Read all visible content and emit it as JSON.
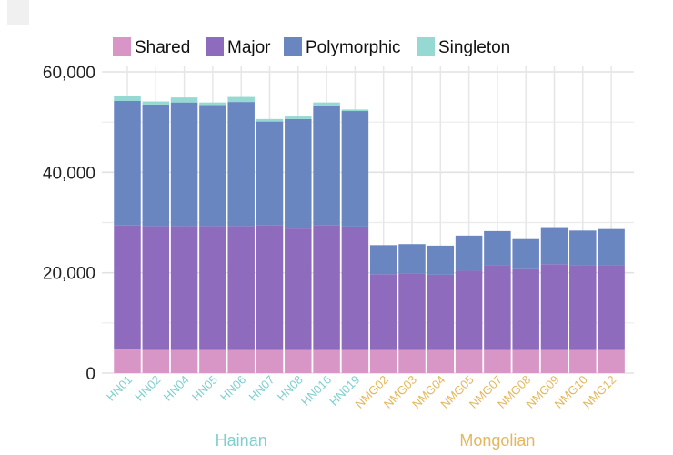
{
  "chart_data": {
    "type": "bar",
    "stacked": true,
    "categories": [
      "HN01",
      "HN02",
      "HN04",
      "HN05",
      "HN06",
      "HN07",
      "HN08",
      "HN016",
      "HN019",
      "NMG02",
      "NMG03",
      "NMG04",
      "NMG05",
      "NMG07",
      "NMG08",
      "NMG09",
      "NMG10",
      "NMG12"
    ],
    "groups": [
      {
        "label": "Hainan",
        "count": 9,
        "color": "#7fcfcf"
      },
      {
        "label": "Mongolian",
        "count": 9,
        "color": "#e3b85c"
      }
    ],
    "series": [
      {
        "name": "Shared",
        "color": "#d796c6",
        "values": [
          4700,
          4600,
          4600,
          4600,
          4600,
          4600,
          4600,
          4600,
          4600,
          4600,
          4600,
          4600,
          4600,
          4600,
          4600,
          4600,
          4600,
          4600
        ]
      },
      {
        "name": "Major",
        "color": "#8e6bbd",
        "values": [
          24700,
          24700,
          24700,
          24700,
          24700,
          24900,
          24200,
          24900,
          24600,
          15100,
          15300,
          15000,
          15800,
          16800,
          16100,
          17100,
          16900,
          16900
        ]
      },
      {
        "name": "Polymorphic",
        "color": "#6a86c1",
        "values": [
          24800,
          24200,
          24600,
          24100,
          24700,
          20600,
          21800,
          23800,
          23000,
          5800,
          5800,
          5800,
          7000,
          6900,
          6000,
          7200,
          6900,
          7200
        ]
      },
      {
        "name": "Singleton",
        "color": "#96d9d3",
        "values": [
          1000,
          600,
          1000,
          500,
          1000,
          500,
          500,
          600,
          300,
          0,
          0,
          0,
          0,
          0,
          0,
          0,
          0,
          0
        ]
      }
    ],
    "ylim": [
      0,
      60000
    ],
    "yticks": [
      0,
      20000,
      40000,
      60000
    ],
    "ytick_labels": [
      "0",
      "20,000",
      "40,000",
      "60,000"
    ],
    "grid": true,
    "legend_position": "top",
    "title": "",
    "xlabel": "",
    "ylabel": ""
  }
}
